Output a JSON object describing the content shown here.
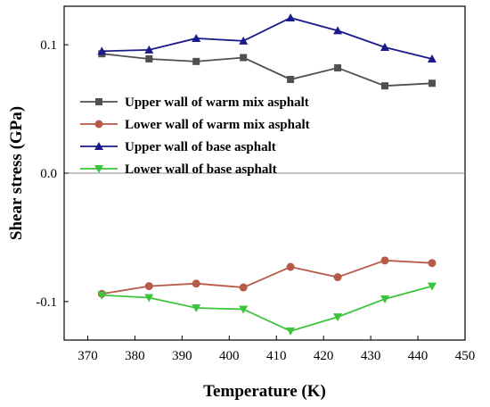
{
  "chart_data": {
    "type": "line",
    "title": "",
    "xlabel": "Temperature (K)",
    "ylabel": "Shear stress (GPa)",
    "xlim": [
      365,
      450
    ],
    "ylim": [
      -0.13,
      0.13
    ],
    "x_ticks": [
      370,
      380,
      390,
      400,
      410,
      420,
      430,
      440,
      450
    ],
    "y_ticks": [
      -0.1,
      0.0,
      0.1
    ],
    "y_tick_labels": [
      "-0.1",
      "0.0",
      "0.1"
    ],
    "zero_line": true,
    "grid": false,
    "legend_position": "upper-center",
    "x": [
      373,
      383,
      393,
      403,
      413,
      423,
      433,
      443
    ],
    "series": [
      {
        "name": "Upper wall of warm mix asphalt",
        "color": "#505050",
        "marker": "square",
        "values": [
          0.093,
          0.089,
          0.087,
          0.09,
          0.073,
          0.082,
          0.068,
          0.07
        ]
      },
      {
        "name": "Lower wall  of  warm mix asphalt",
        "color": "#b85a48",
        "marker": "circle",
        "values": [
          -0.094,
          -0.088,
          -0.086,
          -0.089,
          -0.073,
          -0.081,
          -0.068,
          -0.07
        ]
      },
      {
        "name": "Upper wall of base asphalt",
        "color": "#1a1a8c",
        "marker": "triangle-up",
        "values": [
          0.095,
          0.096,
          0.105,
          0.103,
          0.121,
          0.111,
          0.098,
          0.089
        ]
      },
      {
        "name": "Lower wall  of  base asphalt",
        "color": "#3cc43c",
        "marker": "triangle-down",
        "values": [
          -0.095,
          -0.097,
          -0.105,
          -0.106,
          -0.123,
          -0.112,
          -0.098,
          -0.088
        ]
      }
    ]
  }
}
